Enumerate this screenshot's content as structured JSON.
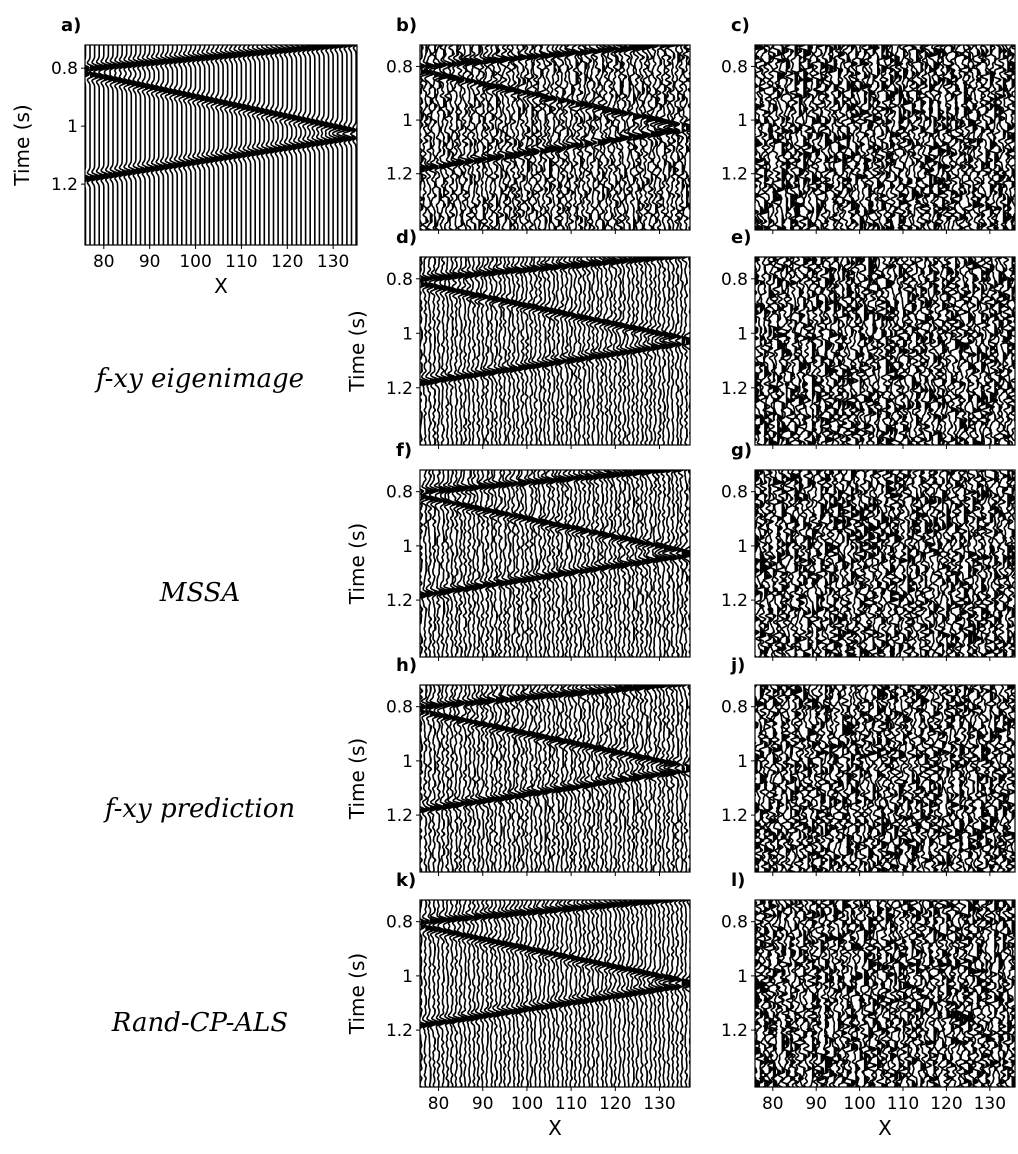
{
  "panels": [
    {
      "label": "a)",
      "ylabel": "Time (s)",
      "xlabel": "X",
      "ylim": [
        0.72,
        1.41
      ],
      "yticks": [
        0.8,
        1.0,
        1.2
      ],
      "xlim": [
        75.9,
        135.2
      ],
      "xticks": [
        80,
        90,
        100,
        110,
        120,
        130
      ],
      "xticklabels": true
    },
    {
      "label": "b)",
      "ylim": [
        0.72,
        1.41
      ],
      "yticks": [
        0.8,
        1.0,
        1.2
      ],
      "xlim": [
        75.8,
        136.9
      ],
      "xticks": [
        80,
        90,
        100,
        110,
        120,
        130
      ],
      "xticklabels": false
    },
    {
      "label": "c)",
      "ylim": [
        0.72,
        1.41
      ],
      "yticks": [
        0.8,
        1.0,
        1.2
      ],
      "xlim": [
        75.9,
        135.8
      ],
      "xticks": [
        80,
        90,
        100,
        110,
        120,
        130
      ],
      "xticklabels": false
    },
    {
      "label": "d)",
      "ylabel": "Time (s)",
      "ylim": [
        0.72,
        1.41
      ],
      "yticks": [
        0.8,
        1.0,
        1.2
      ],
      "xlim": [
        75.8,
        136.9
      ],
      "xticks": [
        80,
        90,
        100,
        110,
        120,
        130
      ],
      "xticklabels": false
    },
    {
      "label": "e)",
      "ylim": [
        0.72,
        1.41
      ],
      "yticks": [
        0.8,
        1.0,
        1.2
      ],
      "xlim": [
        75.9,
        135.8
      ],
      "xticks": [
        80,
        90,
        100,
        110,
        120,
        130
      ],
      "xticklabels": false
    },
    {
      "label": "f)",
      "ylabel": "Time (s)",
      "ylim": [
        0.72,
        1.41
      ],
      "yticks": [
        0.8,
        1.0,
        1.2
      ],
      "xlim": [
        75.8,
        136.9
      ],
      "xticks": [
        80,
        90,
        100,
        110,
        120,
        130
      ],
      "xticklabels": false
    },
    {
      "label": "g)",
      "ylim": [
        0.72,
        1.41
      ],
      "yticks": [
        0.8,
        1.0,
        1.2
      ],
      "xlim": [
        75.9,
        135.8
      ],
      "xticks": [
        80,
        90,
        100,
        110,
        120,
        130
      ],
      "xticklabels": false
    },
    {
      "label": "h)",
      "ylabel": "Time (s)",
      "ylim": [
        0.72,
        1.41
      ],
      "yticks": [
        0.8,
        1.0,
        1.2
      ],
      "xlim": [
        75.8,
        136.9
      ],
      "xticks": [
        80,
        90,
        100,
        110,
        120,
        130
      ],
      "xticklabels": false
    },
    {
      "label": "j)",
      "ylim": [
        0.72,
        1.41
      ],
      "yticks": [
        0.8,
        1.0,
        1.2
      ],
      "xlim": [
        75.9,
        135.8
      ],
      "xticks": [
        80,
        90,
        100,
        110,
        120,
        130
      ],
      "xticklabels": false
    },
    {
      "label": "k)",
      "ylabel": "Time (s)",
      "xlabel": "X",
      "ylim": [
        0.72,
        1.41
      ],
      "yticks": [
        0.8,
        1.0,
        1.2
      ],
      "xlim": [
        75.8,
        136.9
      ],
      "xticks": [
        80,
        90,
        100,
        110,
        120,
        130
      ],
      "xticklabels": true
    },
    {
      "label": "l)",
      "xlabel": "X",
      "ylim": [
        0.72,
        1.41
      ],
      "yticks": [
        0.8,
        1.0,
        1.2
      ],
      "xlim": [
        75.9,
        135.8
      ],
      "xticks": [
        80,
        90,
        100,
        110,
        120,
        130
      ],
      "xticklabels": true
    }
  ],
  "row_labels": [
    "f-xy eigenimage",
    "MSSA",
    "f-xy prediction",
    "Rand-CP-ALS"
  ]
}
